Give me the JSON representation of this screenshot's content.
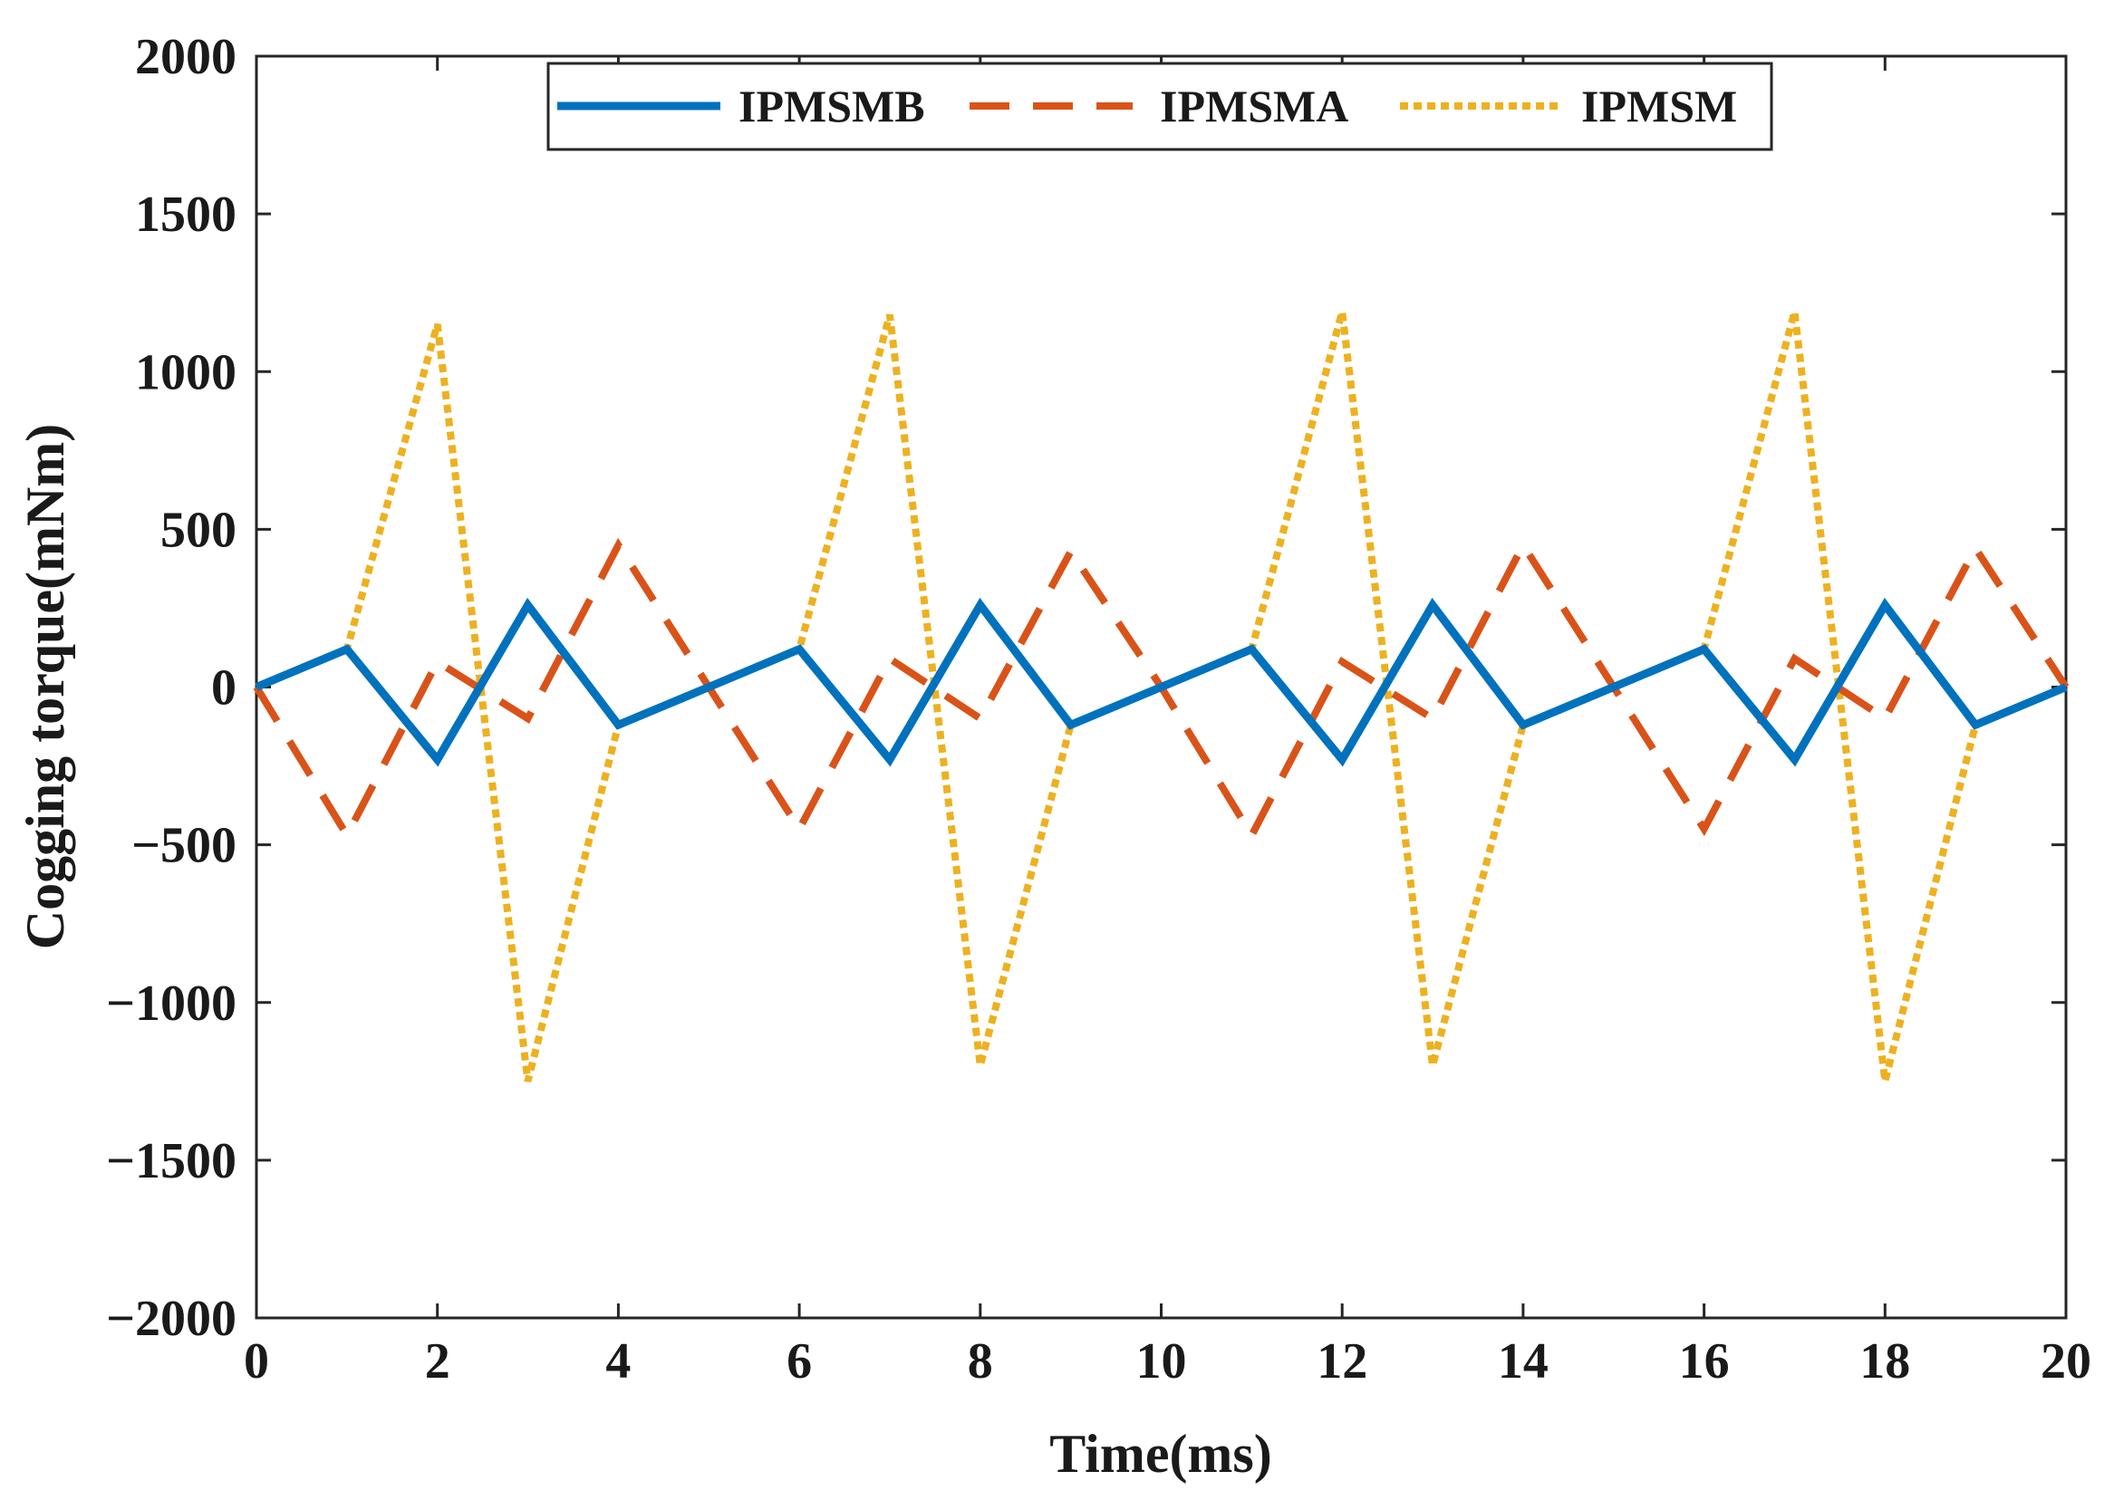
{
  "chart_data": {
    "type": "line",
    "title": "",
    "xlabel": "Time(ms)",
    "ylabel": "Cogging torque(mNm)",
    "xlim": [
      0,
      20
    ],
    "ylim": [
      -2000,
      2000
    ],
    "grid": false,
    "legend_position": "top-center",
    "x_ticks": [
      0,
      2,
      4,
      6,
      8,
      10,
      12,
      14,
      16,
      18,
      20
    ],
    "x_tick_labels": [
      "0",
      "2",
      "4",
      "6",
      "8",
      "10",
      "12",
      "14",
      "16",
      "18",
      "20"
    ],
    "y_ticks": [
      -2000,
      -1500,
      -1000,
      -500,
      0,
      500,
      1000,
      1500,
      2000
    ],
    "y_tick_labels": [
      "−2000",
      "−1500",
      "−1000",
      "−500",
      "0",
      "500",
      "1000",
      "1500",
      "2000"
    ],
    "series": [
      {
        "name": "IPMSMB",
        "color": "#0072BD",
        "style": "solid",
        "x": [
          0,
          1,
          2,
          3,
          4,
          5,
          6,
          7,
          8,
          9,
          10,
          11,
          12,
          13,
          14,
          15,
          16,
          17,
          18,
          19,
          20
        ],
        "values": [
          0,
          120,
          -230,
          260,
          -120,
          0,
          120,
          -230,
          260,
          -120,
          0,
          120,
          -230,
          260,
          -120,
          0,
          120,
          -230,
          260,
          -120,
          0
        ]
      },
      {
        "name": "IPMSMA",
        "color": "#D95319",
        "style": "dashed",
        "x": [
          0,
          1,
          2,
          3,
          4,
          5,
          6,
          7,
          8,
          9,
          10,
          11,
          12,
          13,
          14,
          15,
          16,
          17,
          18,
          19,
          20
        ],
        "values": [
          0,
          -470,
          80,
          -100,
          450,
          0,
          -450,
          90,
          -100,
          430,
          0,
          -470,
          80,
          -100,
          450,
          0,
          -450,
          90,
          -100,
          440,
          0
        ]
      },
      {
        "name": "IPMSM",
        "color": "#EDB120",
        "style": "dotted",
        "x": [
          0,
          1,
          2,
          3,
          4,
          5,
          6,
          7,
          8,
          9,
          10,
          11,
          12,
          13,
          14,
          15,
          16,
          17,
          18,
          19,
          20
        ],
        "values": [
          0,
          120,
          1150,
          -1250,
          -120,
          0,
          120,
          1180,
          -1200,
          -120,
          0,
          120,
          1190,
          -1200,
          -120,
          0,
          120,
          1190,
          -1250,
          -120,
          0
        ]
      }
    ]
  }
}
